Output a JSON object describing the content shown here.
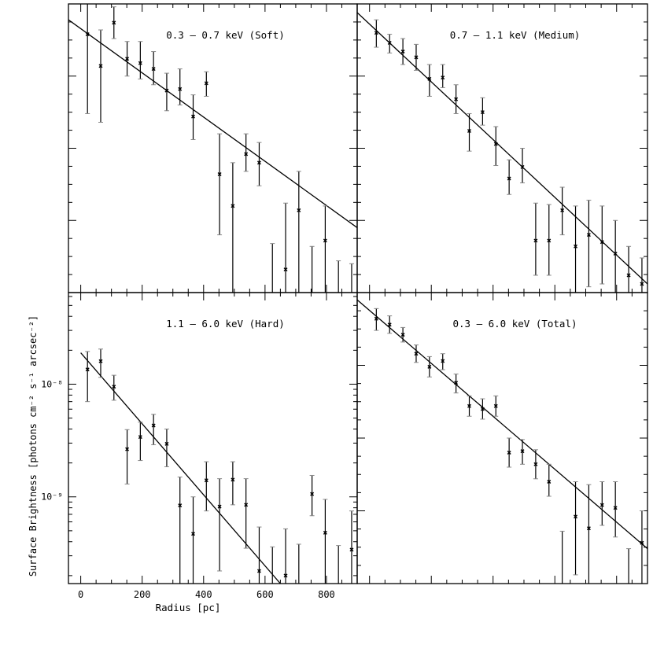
{
  "figure": {
    "ylabel": "Surface Brightness [photons cm⁻² s⁻¹ arcsec⁻²]",
    "xlabel": "Radius [pc]"
  },
  "chart_data": [
    {
      "type": "scatter",
      "title": "0.3 – 0.7 keV (Soft)",
      "xlabel": "",
      "ylabel": "",
      "xlim": [
        -40,
        900
      ],
      "ylim": [
        0,
        1
      ],
      "ylog": false,
      "xticks": [],
      "yticks": [],
      "points": [
        {
          "x": 22,
          "y": 0.895,
          "lo": 0.62,
          "hi": 1.02
        },
        {
          "x": 65,
          "y": 0.785,
          "lo": 0.59,
          "hi": 0.91
        },
        {
          "x": 108,
          "y": 0.935,
          "lo": 0.88,
          "hi": 0.99
        },
        {
          "x": 151,
          "y": 0.81,
          "lo": 0.75,
          "hi": 0.87
        },
        {
          "x": 194,
          "y": 0.795,
          "lo": 0.74,
          "hi": 0.87
        },
        {
          "x": 237,
          "y": 0.775,
          "lo": 0.72,
          "hi": 0.835
        },
        {
          "x": 280,
          "y": 0.7,
          "lo": 0.63,
          "hi": 0.76
        },
        {
          "x": 323,
          "y": 0.705,
          "lo": 0.65,
          "hi": 0.775
        },
        {
          "x": 366,
          "y": 0.61,
          "lo": 0.53,
          "hi": 0.685
        },
        {
          "x": 409,
          "y": 0.725,
          "lo": 0.68,
          "hi": 0.765
        },
        {
          "x": 452,
          "y": 0.41,
          "lo": 0.2,
          "hi": 0.55
        },
        {
          "x": 495,
          "y": 0.3,
          "lo": 0.0,
          "hi": 0.45
        },
        {
          "x": 538,
          "y": 0.48,
          "lo": 0.42,
          "hi": 0.55
        },
        {
          "x": 581,
          "y": 0.45,
          "lo": 0.37,
          "hi": 0.52
        },
        {
          "x": 624,
          "y": 0.0,
          "lo": 0.0,
          "hi": 0.17
        },
        {
          "x": 667,
          "y": 0.08,
          "lo": 0.0,
          "hi": 0.31
        },
        {
          "x": 710,
          "y": 0.285,
          "lo": 0.0,
          "hi": 0.42
        },
        {
          "x": 753,
          "y": 0.0,
          "lo": 0.0,
          "hi": 0.16
        },
        {
          "x": 796,
          "y": 0.18,
          "lo": 0.0,
          "hi": 0.3
        },
        {
          "x": 839,
          "y": 0.0,
          "lo": 0.0,
          "hi": 0.11
        },
        {
          "x": 882,
          "y": 0.0,
          "lo": 0.0,
          "hi": 0.1
        }
      ],
      "fit_line": {
        "x": [
          -40,
          900
        ],
        "y": [
          0.945,
          0.225
        ]
      }
    },
    {
      "type": "scatter",
      "title": "0.7 – 1.1 keV (Medium)",
      "xlabel": "",
      "ylabel": "",
      "xlim": [
        -40,
        900
      ],
      "ylim": [
        0,
        1
      ],
      "ylog": false,
      "xticks": [],
      "yticks": [],
      "points": [
        {
          "x": 22,
          "y": 0.9,
          "lo": 0.85,
          "hi": 0.945
        },
        {
          "x": 65,
          "y": 0.865,
          "lo": 0.83,
          "hi": 0.895
        },
        {
          "x": 108,
          "y": 0.835,
          "lo": 0.79,
          "hi": 0.88
        },
        {
          "x": 151,
          "y": 0.815,
          "lo": 0.77,
          "hi": 0.86
        },
        {
          "x": 194,
          "y": 0.74,
          "lo": 0.68,
          "hi": 0.79
        },
        {
          "x": 237,
          "y": 0.745,
          "lo": 0.71,
          "hi": 0.79
        },
        {
          "x": 280,
          "y": 0.67,
          "lo": 0.62,
          "hi": 0.72
        },
        {
          "x": 323,
          "y": 0.56,
          "lo": 0.49,
          "hi": 0.62
        },
        {
          "x": 366,
          "y": 0.625,
          "lo": 0.58,
          "hi": 0.675
        },
        {
          "x": 409,
          "y": 0.515,
          "lo": 0.44,
          "hi": 0.575
        },
        {
          "x": 452,
          "y": 0.395,
          "lo": 0.34,
          "hi": 0.46
        },
        {
          "x": 495,
          "y": 0.435,
          "lo": 0.38,
          "hi": 0.5
        },
        {
          "x": 538,
          "y": 0.18,
          "lo": 0.06,
          "hi": 0.31
        },
        {
          "x": 581,
          "y": 0.18,
          "lo": 0.06,
          "hi": 0.305
        },
        {
          "x": 624,
          "y": 0.285,
          "lo": 0.2,
          "hi": 0.365
        },
        {
          "x": 667,
          "y": 0.16,
          "lo": 0.0,
          "hi": 0.3
        },
        {
          "x": 710,
          "y": 0.2,
          "lo": 0.02,
          "hi": 0.32
        },
        {
          "x": 753,
          "y": 0.175,
          "lo": 0.03,
          "hi": 0.3
        },
        {
          "x": 796,
          "y": 0.135,
          "lo": 0.0,
          "hi": 0.25
        },
        {
          "x": 839,
          "y": 0.06,
          "lo": 0.0,
          "hi": 0.16
        },
        {
          "x": 882,
          "y": 0.03,
          "lo": 0.0,
          "hi": 0.12
        }
      ],
      "fit_line": {
        "x": [
          -40,
          900
        ],
        "y": [
          0.97,
          0.03
        ]
      }
    },
    {
      "type": "scatter",
      "title": "1.1 – 6.0 keV (Hard)",
      "xlabel": "Radius [pc]",
      "ylabel": "",
      "xlim": [
        -40,
        900
      ],
      "ylim": [
        1.7e-10,
        6.5e-08
      ],
      "ylog": true,
      "xticks": [
        0,
        200,
        400,
        600,
        800
      ],
      "yticks": [
        {
          "v": 1e-08,
          "label": "10⁻⁸"
        },
        {
          "v": 1e-09,
          "label": "10⁻⁹"
        }
      ],
      "points": [
        {
          "x": 22,
          "y": 1.35e-08,
          "lo": 7e-09,
          "hi": 1.95e-08
        },
        {
          "x": 65,
          "y": 1.6e-08,
          "lo": 1.15e-08,
          "hi": 2.05e-08
        },
        {
          "x": 108,
          "y": 9.5e-09,
          "lo": 7.2e-09,
          "hi": 1.2e-08
        },
        {
          "x": 151,
          "y": 2.65e-09,
          "lo": 1.3e-09,
          "hi": 3.95e-09
        },
        {
          "x": 194,
          "y": 3.4e-09,
          "lo": 2.1e-09,
          "hi": 4.6e-09
        },
        {
          "x": 237,
          "y": 4.3e-09,
          "lo": 2.9e-09,
          "hi": 5.4e-09
        },
        {
          "x": 280,
          "y": 2.95e-09,
          "lo": 1.85e-09,
          "hi": 4e-09
        },
        {
          "x": 323,
          "y": 8.4e-10,
          "lo": 1.7e-10,
          "hi": 1.5e-09
        },
        {
          "x": 366,
          "y": 4.7e-10,
          "lo": 1.7e-10,
          "hi": 1e-09
        },
        {
          "x": 409,
          "y": 1.4e-09,
          "lo": 7.5e-10,
          "hi": 2.05e-09
        },
        {
          "x": 452,
          "y": 8.2e-10,
          "lo": 2.2e-10,
          "hi": 1.45e-09
        },
        {
          "x": 495,
          "y": 1.42e-09,
          "lo": 8.5e-10,
          "hi": 2.05e-09
        },
        {
          "x": 538,
          "y": 8.5e-10,
          "lo": 3.5e-10,
          "hi": 1.45e-09
        },
        {
          "x": 581,
          "y": 2.2e-10,
          "lo": 1.7e-10,
          "hi": 5.4e-10
        },
        {
          "x": 624,
          "y": 1.7e-10,
          "lo": 1.7e-10,
          "hi": 3.6e-10
        },
        {
          "x": 667,
          "y": 2e-10,
          "lo": 1.7e-10,
          "hi": 5.2e-10
        },
        {
          "x": 710,
          "y": 1.7e-10,
          "lo": 1.7e-10,
          "hi": 3.8e-10
        },
        {
          "x": 753,
          "y": 1.06e-09,
          "lo": 6.8e-10,
          "hi": 1.55e-09
        },
        {
          "x": 796,
          "y": 4.8e-10,
          "lo": 1.7e-10,
          "hi": 9.5e-10
        },
        {
          "x": 839,
          "y": 1.7e-10,
          "lo": 1.7e-10,
          "hi": 3.7e-10
        },
        {
          "x": 882,
          "y": 3.4e-10,
          "lo": 1.7e-10,
          "hi": 7.5e-10
        }
      ],
      "fit_line": {
        "x": [
          0,
          650
        ],
        "y": [
          1.9e-08,
          1.7e-10
        ]
      }
    },
    {
      "type": "scatter",
      "title": "0.3 – 6.0 keV (Total)",
      "xlabel": "",
      "ylabel": "",
      "xlim": [
        -40,
        900
      ],
      "ylim": [
        0,
        1
      ],
      "ylog": false,
      "xticks": [],
      "yticks": [],
      "points": [
        {
          "x": 22,
          "y": 0.91,
          "lo": 0.87,
          "hi": 0.945
        },
        {
          "x": 65,
          "y": 0.89,
          "lo": 0.86,
          "hi": 0.92
        },
        {
          "x": 108,
          "y": 0.855,
          "lo": 0.83,
          "hi": 0.88
        },
        {
          "x": 151,
          "y": 0.79,
          "lo": 0.76,
          "hi": 0.82
        },
        {
          "x": 194,
          "y": 0.745,
          "lo": 0.71,
          "hi": 0.78
        },
        {
          "x": 237,
          "y": 0.765,
          "lo": 0.735,
          "hi": 0.79
        },
        {
          "x": 280,
          "y": 0.69,
          "lo": 0.655,
          "hi": 0.72
        },
        {
          "x": 323,
          "y": 0.61,
          "lo": 0.575,
          "hi": 0.645
        },
        {
          "x": 366,
          "y": 0.6,
          "lo": 0.565,
          "hi": 0.635
        },
        {
          "x": 409,
          "y": 0.61,
          "lo": 0.575,
          "hi": 0.645
        },
        {
          "x": 452,
          "y": 0.45,
          "lo": 0.4,
          "hi": 0.5
        },
        {
          "x": 495,
          "y": 0.455,
          "lo": 0.41,
          "hi": 0.495
        },
        {
          "x": 538,
          "y": 0.41,
          "lo": 0.36,
          "hi": 0.46
        },
        {
          "x": 581,
          "y": 0.35,
          "lo": 0.3,
          "hi": 0.41
        },
        {
          "x": 624,
          "y": 0.0,
          "lo": 0.0,
          "hi": 0.18
        },
        {
          "x": 667,
          "y": 0.23,
          "lo": 0.03,
          "hi": 0.35
        },
        {
          "x": 710,
          "y": 0.19,
          "lo": 0.0,
          "hi": 0.34
        },
        {
          "x": 753,
          "y": 0.27,
          "lo": 0.2,
          "hi": 0.35
        },
        {
          "x": 796,
          "y": 0.26,
          "lo": 0.16,
          "hi": 0.35
        },
        {
          "x": 839,
          "y": 0.0,
          "lo": 0.0,
          "hi": 0.12
        },
        {
          "x": 882,
          "y": 0.14,
          "lo": 0.0,
          "hi": 0.25
        }
      ],
      "fit_line": {
        "x": [
          -40,
          900
        ],
        "y": [
          0.975,
          0.12
        ]
      }
    }
  ]
}
